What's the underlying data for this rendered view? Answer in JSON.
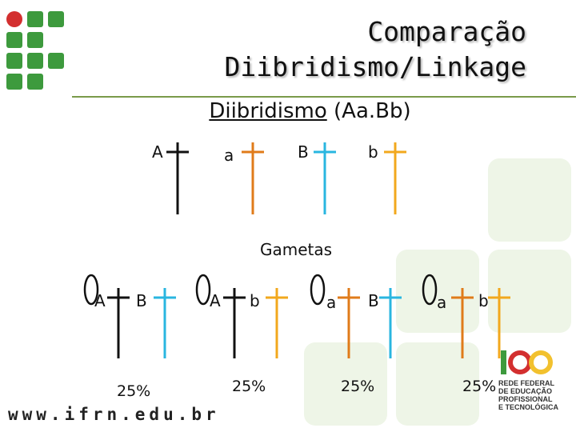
{
  "title": {
    "line1": "Comparação",
    "line2": "Diibridismo/Linkage"
  },
  "subtitle": {
    "underlined": "Diibridismo",
    "rest": " (Aa.Bb)"
  },
  "parental_alleles": [
    "A",
    "a",
    "B",
    "b"
  ],
  "gametes_label": "Gametas",
  "gametes": [
    {
      "allele1": "A",
      "allele2": "B",
      "percent": "25%",
      "circle": "0"
    },
    {
      "allele1": "A",
      "allele2": "b",
      "percent": "25%",
      "circle": "0"
    },
    {
      "allele1": "a",
      "allele2": "B",
      "percent": "25%",
      "circle": "0"
    },
    {
      "allele1": "a",
      "allele2": "b",
      "percent": "25%",
      "circle": "0"
    }
  ],
  "footer_url": "www.ifrn.edu.br",
  "logo_text": [
    "REDE FEDERAL",
    "DE EDUCAÇÃO",
    "PROFISSIONAL",
    "E TECNOLÓGICA"
  ],
  "colors": {
    "A": "#111111",
    "a": "#e07b1a",
    "B": "#29b6e0",
    "b": "#f2a81d",
    "logo_green": "#3d9a3d",
    "logo_red": "#d32f2f"
  }
}
